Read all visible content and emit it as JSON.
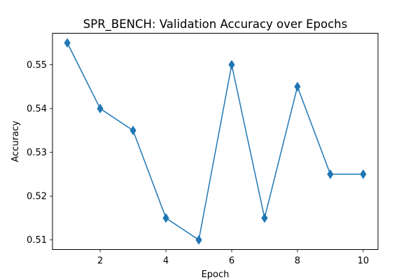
{
  "chart_data": {
    "type": "line",
    "title": "SPR_BENCH: Validation Accuracy over Epochs",
    "xlabel": "Epoch",
    "ylabel": "Accuracy",
    "x": [
      1,
      2,
      3,
      4,
      5,
      6,
      7,
      8,
      9,
      10
    ],
    "series": [
      {
        "values": [
          0.555,
          0.54,
          0.535,
          0.515,
          0.51,
          0.55,
          0.515,
          0.545,
          0.525,
          0.525
        ]
      }
    ],
    "xticks": [
      2,
      4,
      6,
      8,
      10
    ],
    "yticks": [
      0.51,
      0.52,
      0.53,
      0.54,
      0.55
    ],
    "xlim": [
      0.55,
      10.45
    ],
    "ylim": [
      0.5078,
      0.5572
    ],
    "marker": "diamond",
    "grid": false,
    "color": "#1f77b4"
  }
}
